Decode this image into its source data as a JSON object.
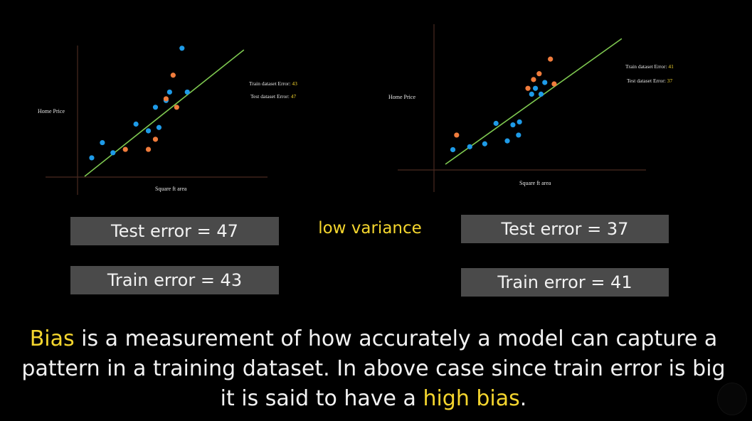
{
  "chart_data": [
    {
      "type": "scatter",
      "ylabel": "Home Price",
      "xlabel": "Square ft area",
      "fit_line": {
        "color": "#7ec850",
        "from": [
          0,
          0
        ],
        "to": [
          10,
          10
        ]
      },
      "series": [
        {
          "color": "#1e9be8",
          "x": [
            0.4,
            1.0,
            1.6,
            2.9,
            3.6,
            4.0,
            4.2,
            4.6,
            4.8,
            5.5,
            5.8
          ],
          "y": [
            1.1,
            2.0,
            1.4,
            3.1,
            2.7,
            4.1,
            2.9,
            4.5,
            5.0,
            7.6,
            5.0
          ]
        },
        {
          "color": "#f07c3c",
          "x": [
            2.3,
            3.6,
            4.0,
            4.6,
            5.0,
            5.2
          ],
          "y": [
            1.6,
            1.6,
            2.2,
            4.6,
            6.0,
            4.1
          ]
        }
      ],
      "annotations": [
        {
          "label": "Train dataset Error: ",
          "value": "43"
        },
        {
          "label": "Test dataset Error: ",
          "value": "47"
        }
      ]
    },
    {
      "type": "scatter",
      "ylabel": "Home Price",
      "xlabel": "Square ft area",
      "fit_line": {
        "color": "#7ec850",
        "from": [
          0,
          0
        ],
        "to": [
          10,
          10
        ]
      },
      "series": [
        {
          "color": "#1e9be8",
          "x": [
            0.4,
            1.3,
            2.1,
            2.7,
            3.3,
            3.6,
            3.9,
            3.95,
            4.6,
            4.8,
            5.1,
            5.3
          ],
          "y": [
            1.0,
            1.2,
            1.4,
            2.8,
            1.6,
            2.7,
            2.0,
            2.9,
            4.8,
            5.2,
            4.8,
            5.6
          ]
        },
        {
          "color": "#f07c3c",
          "x": [
            0.6,
            4.4,
            4.7,
            5.0,
            5.6,
            5.8
          ],
          "y": [
            2.0,
            5.2,
            5.8,
            6.2,
            7.2,
            5.5
          ]
        }
      ],
      "annotations": [
        {
          "label": "Train dataset Error: ",
          "value": "41"
        },
        {
          "label": "Test dataset Error: ",
          "value": "37"
        }
      ]
    }
  ],
  "colors": {
    "accent": "#f5d62e",
    "box": "#4a4a4a",
    "text": "#f2f2f2",
    "blue": "#1e9be8",
    "orange": "#f07c3c",
    "fit_line": "#7ec850"
  },
  "boxes": {
    "left_test": "Test error = 47",
    "left_train": "Train error = 43",
    "middle_label": "low variance",
    "right_test": "Test error = 37",
    "right_train": "Train error = 41"
  },
  "caption": {
    "bias_word": "Bias",
    "part1": " is a measurement of how accurately a model can capture a pattern in a training dataset. In above case since train error is big it is said to have a ",
    "high_bias": "high bias",
    "end": "."
  }
}
